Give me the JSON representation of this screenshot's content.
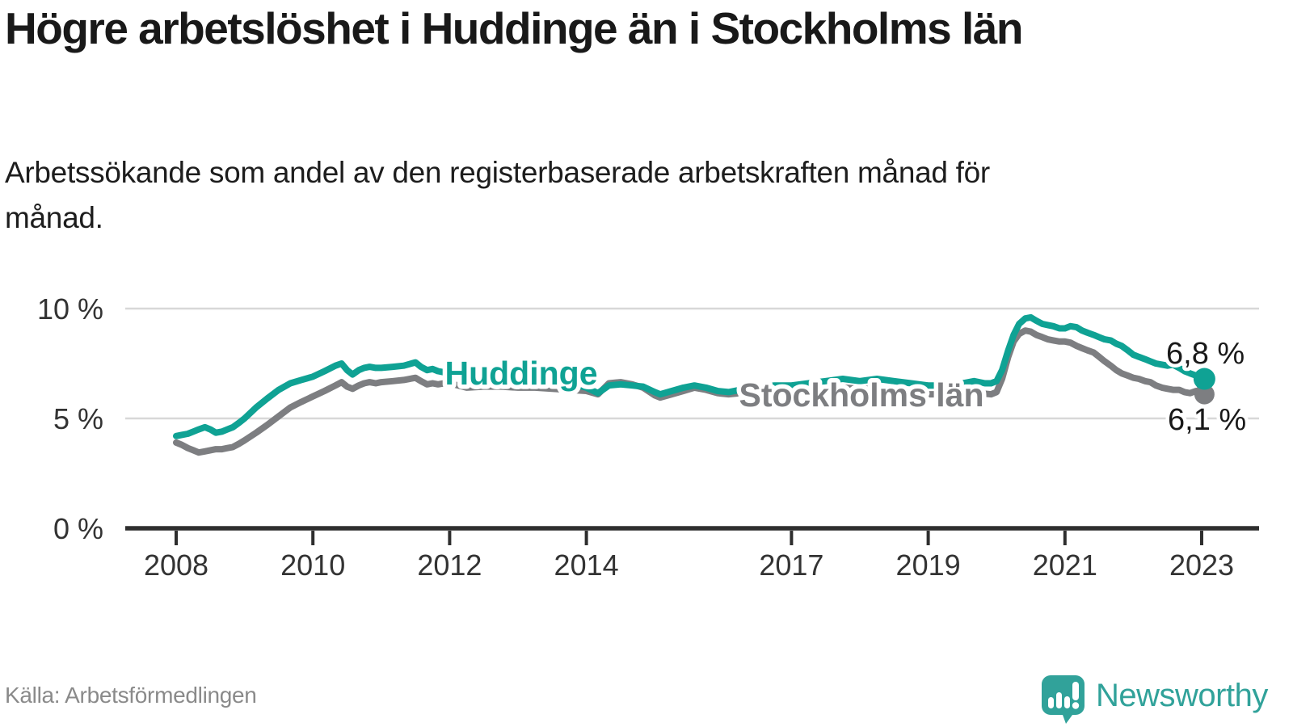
{
  "header": {
    "title": "Högre arbetslöshet i Huddinge än i Stockholms län",
    "subtitle": "Arbetssökande som andel av den registerbaserade arbetskraften månad för månad."
  },
  "footer": {
    "source": "Källa: Arbetsförmedlingen",
    "brand": "Newsworthy"
  },
  "colors": {
    "huddinge_teal": "#0fa294",
    "stockholm_gray": "#7d7e81",
    "grid": "#d8d8d8",
    "axis": "#2e2e2e",
    "tick_text": "#333333",
    "label_text": "#191919",
    "muted_text": "#8a8a8a",
    "logo_teal": "#31a29a"
  },
  "chart_data": {
    "type": "line",
    "title": "Högre arbetslöshet i Huddinge än i Stockholms län",
    "subtitle": "Arbetssökande som andel av den registerbaserade arbetskraften månad för månad.",
    "unit": "%",
    "grid": true,
    "legend_position": "inline-on-lines",
    "x_axis": {
      "ticks": [
        2008,
        2010,
        2012,
        2014,
        2017,
        2019,
        2021,
        2023
      ],
      "tick_labels": [
        "2008",
        "2010",
        "2012",
        "2014",
        "2017",
        "2019",
        "2021",
        "2023"
      ],
      "range": [
        2007.25,
        2023.85
      ]
    },
    "y_axis": {
      "ticks": [
        0,
        5,
        10
      ],
      "tick_labels": [
        "0 %",
        "5 %",
        "10 %"
      ],
      "range": [
        0,
        10.6
      ]
    },
    "series": [
      {
        "name": "Stockholms län",
        "color": "#7d7e81",
        "end_value": 6.1,
        "end_label": "6,1 %",
        "points": [
          [
            2008.0,
            3.9
          ],
          [
            2008.08,
            3.8
          ],
          [
            2008.17,
            3.65
          ],
          [
            2008.25,
            3.55
          ],
          [
            2008.33,
            3.45
          ],
          [
            2008.42,
            3.5
          ],
          [
            2008.5,
            3.55
          ],
          [
            2008.58,
            3.6
          ],
          [
            2008.67,
            3.6
          ],
          [
            2008.75,
            3.65
          ],
          [
            2008.83,
            3.7
          ],
          [
            2008.92,
            3.85
          ],
          [
            2009.0,
            4.0
          ],
          [
            2009.17,
            4.35
          ],
          [
            2009.33,
            4.7
          ],
          [
            2009.5,
            5.1
          ],
          [
            2009.67,
            5.5
          ],
          [
            2009.83,
            5.75
          ],
          [
            2010.0,
            6.0
          ],
          [
            2010.17,
            6.25
          ],
          [
            2010.33,
            6.5
          ],
          [
            2010.42,
            6.65
          ],
          [
            2010.5,
            6.45
          ],
          [
            2010.58,
            6.35
          ],
          [
            2010.67,
            6.5
          ],
          [
            2010.75,
            6.6
          ],
          [
            2010.83,
            6.65
          ],
          [
            2010.92,
            6.6
          ],
          [
            2011.0,
            6.65
          ],
          [
            2011.17,
            6.7
          ],
          [
            2011.33,
            6.75
          ],
          [
            2011.5,
            6.85
          ],
          [
            2011.58,
            6.7
          ],
          [
            2011.67,
            6.55
          ],
          [
            2011.75,
            6.6
          ],
          [
            2011.83,
            6.55
          ],
          [
            2011.92,
            6.6
          ],
          [
            2012.0,
            6.6
          ],
          [
            2012.25,
            6.4
          ],
          [
            2012.5,
            6.45
          ],
          [
            2012.75,
            6.45
          ],
          [
            2013.0,
            6.4
          ],
          [
            2013.25,
            6.4
          ],
          [
            2013.5,
            6.35
          ],
          [
            2013.75,
            6.3
          ],
          [
            2014.0,
            6.25
          ],
          [
            2014.17,
            6.1
          ],
          [
            2014.33,
            6.6
          ],
          [
            2014.5,
            6.65
          ],
          [
            2014.67,
            6.55
          ],
          [
            2014.83,
            6.4
          ],
          [
            2015.0,
            6.05
          ],
          [
            2015.08,
            5.95
          ],
          [
            2015.25,
            6.1
          ],
          [
            2015.42,
            6.25
          ],
          [
            2015.58,
            6.4
          ],
          [
            2015.75,
            6.3
          ],
          [
            2015.92,
            6.15
          ],
          [
            2016.08,
            6.1
          ],
          [
            2016.25,
            6.15
          ],
          [
            2016.5,
            6.2
          ],
          [
            2016.75,
            6.25
          ],
          [
            2017.0,
            6.25
          ],
          [
            2017.25,
            6.3
          ],
          [
            2017.5,
            6.35
          ],
          [
            2017.75,
            6.4
          ],
          [
            2018.0,
            6.35
          ],
          [
            2018.25,
            6.35
          ],
          [
            2018.5,
            6.3
          ],
          [
            2018.75,
            6.2
          ],
          [
            2019.0,
            6.1
          ],
          [
            2019.25,
            6.1
          ],
          [
            2019.5,
            6.1
          ],
          [
            2019.75,
            6.15
          ],
          [
            2019.92,
            6.1
          ],
          [
            2020.0,
            6.2
          ],
          [
            2020.08,
            6.8
          ],
          [
            2020.17,
            7.8
          ],
          [
            2020.25,
            8.5
          ],
          [
            2020.33,
            8.85
          ],
          [
            2020.42,
            9.0
          ],
          [
            2020.5,
            8.95
          ],
          [
            2020.58,
            8.8
          ],
          [
            2020.67,
            8.7
          ],
          [
            2020.75,
            8.6
          ],
          [
            2020.83,
            8.55
          ],
          [
            2020.92,
            8.5
          ],
          [
            2021.0,
            8.5
          ],
          [
            2021.08,
            8.45
          ],
          [
            2021.17,
            8.3
          ],
          [
            2021.25,
            8.2
          ],
          [
            2021.33,
            8.1
          ],
          [
            2021.42,
            8.0
          ],
          [
            2021.5,
            7.8
          ],
          [
            2021.58,
            7.6
          ],
          [
            2021.67,
            7.4
          ],
          [
            2021.75,
            7.2
          ],
          [
            2021.83,
            7.05
          ],
          [
            2021.92,
            6.95
          ],
          [
            2022.0,
            6.85
          ],
          [
            2022.08,
            6.8
          ],
          [
            2022.17,
            6.7
          ],
          [
            2022.25,
            6.65
          ],
          [
            2022.33,
            6.5
          ],
          [
            2022.42,
            6.4
          ],
          [
            2022.5,
            6.35
          ],
          [
            2022.58,
            6.3
          ],
          [
            2022.67,
            6.3
          ],
          [
            2022.75,
            6.2
          ],
          [
            2022.83,
            6.15
          ],
          [
            2022.92,
            6.25
          ],
          [
            2023.0,
            6.15
          ],
          [
            2023.04,
            6.1
          ]
        ]
      },
      {
        "name": "Huddinge",
        "color": "#0fa294",
        "end_value": 6.8,
        "end_label": "6,8 %",
        "points": [
          [
            2008.0,
            4.2
          ],
          [
            2008.08,
            4.25
          ],
          [
            2008.17,
            4.3
          ],
          [
            2008.25,
            4.4
          ],
          [
            2008.33,
            4.5
          ],
          [
            2008.42,
            4.6
          ],
          [
            2008.5,
            4.5
          ],
          [
            2008.58,
            4.35
          ],
          [
            2008.67,
            4.4
          ],
          [
            2008.75,
            4.5
          ],
          [
            2008.83,
            4.6
          ],
          [
            2008.92,
            4.8
          ],
          [
            2009.0,
            5.0
          ],
          [
            2009.17,
            5.5
          ],
          [
            2009.33,
            5.9
          ],
          [
            2009.5,
            6.3
          ],
          [
            2009.67,
            6.6
          ],
          [
            2009.83,
            6.75
          ],
          [
            2010.0,
            6.9
          ],
          [
            2010.17,
            7.15
          ],
          [
            2010.33,
            7.4
          ],
          [
            2010.42,
            7.5
          ],
          [
            2010.5,
            7.2
          ],
          [
            2010.58,
            7.0
          ],
          [
            2010.67,
            7.2
          ],
          [
            2010.75,
            7.3
          ],
          [
            2010.83,
            7.35
          ],
          [
            2010.92,
            7.3
          ],
          [
            2011.0,
            7.3
          ],
          [
            2011.17,
            7.35
          ],
          [
            2011.33,
            7.4
          ],
          [
            2011.5,
            7.55
          ],
          [
            2011.58,
            7.35
          ],
          [
            2011.67,
            7.2
          ],
          [
            2011.75,
            7.25
          ],
          [
            2011.83,
            7.15
          ],
          [
            2011.92,
            7.1
          ],
          [
            2012.0,
            7.1
          ],
          [
            2012.25,
            7.0
          ],
          [
            2012.5,
            6.9
          ],
          [
            2012.75,
            6.9
          ],
          [
            2013.0,
            6.9
          ],
          [
            2013.25,
            6.85
          ],
          [
            2013.5,
            6.8
          ],
          [
            2013.75,
            6.6
          ],
          [
            2014.0,
            6.4
          ],
          [
            2014.17,
            6.15
          ],
          [
            2014.33,
            6.5
          ],
          [
            2014.5,
            6.55
          ],
          [
            2014.67,
            6.5
          ],
          [
            2014.83,
            6.45
          ],
          [
            2015.0,
            6.2
          ],
          [
            2015.08,
            6.1
          ],
          [
            2015.25,
            6.25
          ],
          [
            2015.42,
            6.4
          ],
          [
            2015.58,
            6.5
          ],
          [
            2015.75,
            6.4
          ],
          [
            2015.92,
            6.25
          ],
          [
            2016.08,
            6.2
          ],
          [
            2016.25,
            6.3
          ],
          [
            2016.5,
            6.4
          ],
          [
            2016.75,
            6.5
          ],
          [
            2017.0,
            6.5
          ],
          [
            2017.25,
            6.6
          ],
          [
            2017.5,
            6.7
          ],
          [
            2017.75,
            6.8
          ],
          [
            2018.0,
            6.7
          ],
          [
            2018.25,
            6.8
          ],
          [
            2018.5,
            6.7
          ],
          [
            2018.75,
            6.6
          ],
          [
            2019.0,
            6.5
          ],
          [
            2019.25,
            6.5
          ],
          [
            2019.5,
            6.6
          ],
          [
            2019.67,
            6.7
          ],
          [
            2019.83,
            6.6
          ],
          [
            2019.92,
            6.6
          ],
          [
            2020.0,
            6.7
          ],
          [
            2020.08,
            7.2
          ],
          [
            2020.17,
            8.1
          ],
          [
            2020.25,
            8.8
          ],
          [
            2020.33,
            9.3
          ],
          [
            2020.42,
            9.55
          ],
          [
            2020.5,
            9.6
          ],
          [
            2020.58,
            9.45
          ],
          [
            2020.67,
            9.3
          ],
          [
            2020.75,
            9.25
          ],
          [
            2020.83,
            9.2
          ],
          [
            2020.92,
            9.1
          ],
          [
            2021.0,
            9.1
          ],
          [
            2021.08,
            9.2
          ],
          [
            2021.17,
            9.15
          ],
          [
            2021.25,
            9.0
          ],
          [
            2021.33,
            8.9
          ],
          [
            2021.42,
            8.8
          ],
          [
            2021.5,
            8.7
          ],
          [
            2021.58,
            8.6
          ],
          [
            2021.67,
            8.55
          ],
          [
            2021.75,
            8.4
          ],
          [
            2021.83,
            8.3
          ],
          [
            2021.92,
            8.1
          ],
          [
            2022.0,
            7.9
          ],
          [
            2022.08,
            7.8
          ],
          [
            2022.17,
            7.7
          ],
          [
            2022.25,
            7.6
          ],
          [
            2022.33,
            7.5
          ],
          [
            2022.42,
            7.45
          ],
          [
            2022.5,
            7.4
          ],
          [
            2022.58,
            7.45
          ],
          [
            2022.67,
            7.3
          ],
          [
            2022.75,
            7.15
          ],
          [
            2022.83,
            7.05
          ],
          [
            2022.92,
            6.95
          ],
          [
            2023.0,
            6.85
          ],
          [
            2023.04,
            6.8
          ]
        ]
      }
    ]
  }
}
